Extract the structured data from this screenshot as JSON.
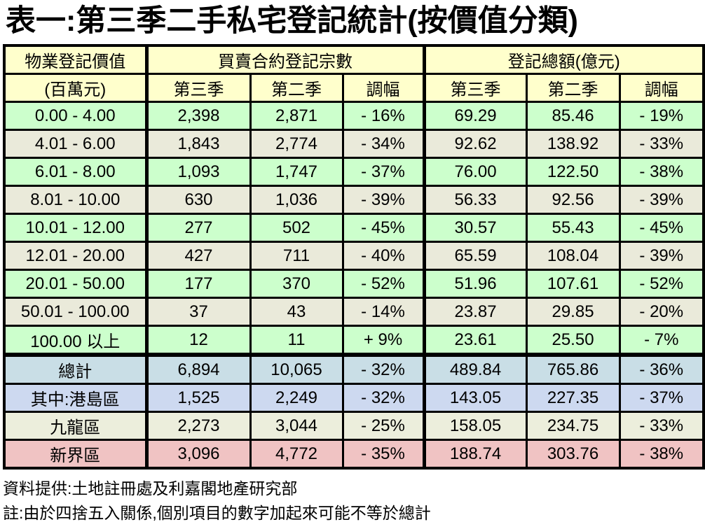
{
  "title": "表一:第三季二手私宅登記統計(按價值分類)",
  "colors": {
    "page_bg": "#FFFFFF",
    "text": "#000000",
    "border": "#000000",
    "header_bg": "#FFFFCC",
    "row_green": "#CCFFCC",
    "row_beige": "#EAEADA",
    "total_bg": "#C9DEE6",
    "island_bg": "#CDD9F0",
    "kowloon_bg": "#ECEEDC",
    "nt_bg": "#F0C3C3"
  },
  "chart_data": {
    "type": "table",
    "title": "表一:第三季二手私宅登記統計(按價值分類)",
    "col1_header": {
      "line1": "物業登記價值",
      "line2": "(百萬元)"
    },
    "group_headers": {
      "group1": "買賣合約登記宗數",
      "group2": "登記總額(億元)"
    },
    "subheaders": [
      "第三季",
      "第二季",
      "調幅"
    ],
    "rows": [
      {
        "cells": [
          "0.00 - 4.00",
          "2,398",
          "2,871",
          "- 16%",
          "69.29",
          "85.46",
          "- 19%"
        ],
        "bg": "row_green"
      },
      {
        "cells": [
          "4.01 - 6.00",
          "1,843",
          "2,774",
          "- 34%",
          "92.62",
          "138.92",
          "- 33%"
        ],
        "bg": "row_beige"
      },
      {
        "cells": [
          "6.01 - 8.00",
          "1,093",
          "1,747",
          "- 37%",
          "76.00",
          "122.50",
          "- 38%"
        ],
        "bg": "row_green"
      },
      {
        "cells": [
          "8.01 - 10.00",
          "630",
          "1,036",
          "- 39%",
          "56.33",
          "92.56",
          "- 39%"
        ],
        "bg": "row_beige"
      },
      {
        "cells": [
          "10.01 - 12.00",
          "277",
          "502",
          "- 45%",
          "30.57",
          "55.43",
          "- 45%"
        ],
        "bg": "row_green"
      },
      {
        "cells": [
          "12.01 - 20.00",
          "427",
          "711",
          "- 40%",
          "65.59",
          "108.04",
          "- 39%"
        ],
        "bg": "row_beige"
      },
      {
        "cells": [
          "20.01 - 50.00",
          "177",
          "370",
          "- 52%",
          "51.96",
          "107.61",
          "- 52%"
        ],
        "bg": "row_green"
      },
      {
        "cells": [
          "50.01 - 100.00",
          "37",
          "43",
          "- 14%",
          "23.87",
          "29.85",
          "- 20%"
        ],
        "bg": "row_beige"
      },
      {
        "cells": [
          "100.00 以上",
          "12",
          "11",
          "+ 9%",
          "23.61",
          "25.50",
          "- 7%"
        ],
        "bg": "row_green"
      },
      {
        "cells": [
          "總計",
          "6,894",
          "10,065",
          "- 32%",
          "489.84",
          "765.86",
          "- 36%"
        ],
        "bg": "total_bg",
        "thick_top": true
      },
      {
        "cells": [
          "其中:港島區",
          "1,525",
          "2,249",
          "- 32%",
          "143.05",
          "227.35",
          "- 37%"
        ],
        "bg": "island_bg"
      },
      {
        "cells": [
          "九龍區",
          "2,273",
          "3,044",
          "- 25%",
          "158.05",
          "234.75",
          "- 33%"
        ],
        "bg": "kowloon_bg",
        "label_align": "right"
      },
      {
        "cells": [
          "新界區",
          "3,096",
          "4,772",
          "- 35%",
          "188.74",
          "303.76",
          "- 38%"
        ],
        "bg": "nt_bg",
        "label_align": "right"
      }
    ]
  },
  "notes": {
    "source": "資料提供:土地註冊處及利嘉閣地產研究部",
    "rounding": "註:由於四捨五入關係,個別項目的數字加起來可能不等於總計"
  }
}
